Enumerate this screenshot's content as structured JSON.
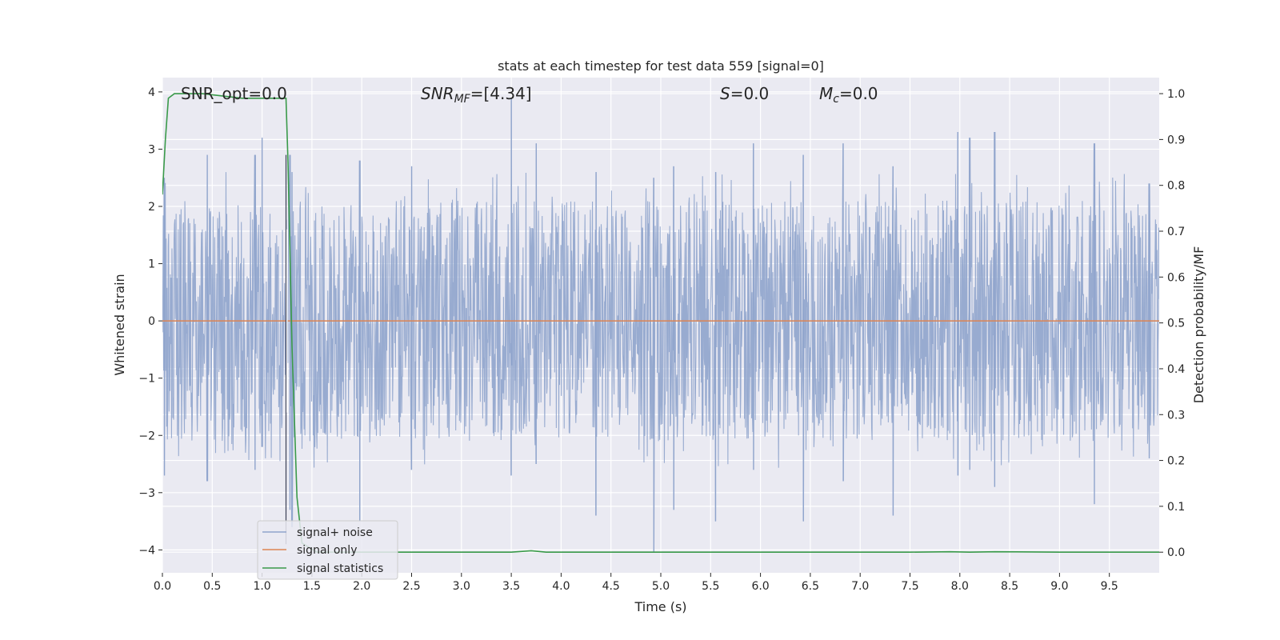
{
  "chart_data": {
    "type": "line",
    "title": "stats at each timestep for test data 559 [signal=0]",
    "xlabel": "Time (s)",
    "ylabel_left": "Whitened strain",
    "ylabel_right": "Detection probability/MF",
    "xlim": [
      0.0,
      10.0
    ],
    "ylim_left": [
      -4.4,
      4.25
    ],
    "ylim_right": [
      -0.045,
      1.035
    ],
    "x_ticks": [
      "0.0",
      "0.5",
      "1.0",
      "1.5",
      "2.0",
      "2.5",
      "3.0",
      "3.5",
      "4.0",
      "4.5",
      "5.0",
      "5.5",
      "6.0",
      "6.5",
      "7.0",
      "7.5",
      "8.0",
      "8.5",
      "9.0",
      "9.5"
    ],
    "x_tick_values": [
      0,
      0.5,
      1,
      1.5,
      2,
      2.5,
      3,
      3.5,
      4,
      4.5,
      5,
      5.5,
      6,
      6.5,
      7,
      7.5,
      8,
      8.5,
      9,
      9.5
    ],
    "y_left_ticks": [
      "−4",
      "−3",
      "−2",
      "−1",
      "0",
      "1",
      "2",
      "3",
      "4"
    ],
    "y_left_tick_values": [
      -4,
      -3,
      -2,
      -1,
      0,
      1,
      2,
      3,
      4
    ],
    "y_right_ticks": [
      "0.0",
      "0.1",
      "0.2",
      "0.3",
      "0.4",
      "0.5",
      "0.6",
      "0.7",
      "0.8",
      "0.9",
      "1.0"
    ],
    "y_right_tick_values": [
      0,
      0.1,
      0.2,
      0.3,
      0.4,
      0.5,
      0.6,
      0.7,
      0.8,
      0.9,
      1.0
    ],
    "grid": true,
    "legend_placement": "lower-left",
    "annotations": {
      "snr_opt": "SNR_opt=0.0",
      "snr_mf_main": "SNR",
      "snr_mf_sub": "MF",
      "snr_mf_value": "=[4.34]",
      "s_main": "S",
      "s_value": "=0.0",
      "mc_main": "M",
      "mc_sub": "c",
      "mc_value": "=0.0"
    },
    "series": [
      {
        "name": "signal+ noise",
        "axis": "left",
        "color": "#8fa4cc",
        "envelope_peaks": [
          {
            "x": 0.02,
            "hi": 2.5,
            "lo": -2.7
          },
          {
            "x": 0.45,
            "hi": 2.9,
            "lo": -2.8
          },
          {
            "x": 0.93,
            "hi": 2.9,
            "lo": -2.6
          },
          {
            "x": 1.0,
            "hi": 3.2,
            "lo": -2.2
          },
          {
            "x": 1.28,
            "hi": 2.9,
            "lo": -3.3
          },
          {
            "x": 1.3,
            "hi": 2.6,
            "lo": -3.6
          },
          {
            "x": 1.98,
            "hi": 2.8,
            "lo": -3.5
          },
          {
            "x": 2.5,
            "hi": 2.7,
            "lo": -2.6
          },
          {
            "x": 3.5,
            "hi": 3.9,
            "lo": -2.7
          },
          {
            "x": 3.75,
            "hi": 3.1,
            "lo": -2.5
          },
          {
            "x": 4.35,
            "hi": 2.6,
            "lo": -3.4
          },
          {
            "x": 4.93,
            "hi": 2.5,
            "lo": -4.05
          },
          {
            "x": 5.13,
            "hi": 2.7,
            "lo": -3.3
          },
          {
            "x": 5.55,
            "hi": 2.6,
            "lo": -3.5
          },
          {
            "x": 5.93,
            "hi": 3.1,
            "lo": -2.6
          },
          {
            "x": 6.43,
            "hi": 2.9,
            "lo": -3.5
          },
          {
            "x": 6.83,
            "hi": 3.1,
            "lo": -2.8
          },
          {
            "x": 7.33,
            "hi": 2.7,
            "lo": -3.4
          },
          {
            "x": 7.98,
            "hi": 3.3,
            "lo": -2.7
          },
          {
            "x": 8.1,
            "hi": 3.2,
            "lo": -2.6
          },
          {
            "x": 8.35,
            "hi": 3.3,
            "lo": -2.9
          },
          {
            "x": 9.35,
            "hi": 3.1,
            "lo": -3.2
          },
          {
            "x": 9.9,
            "hi": 2.4,
            "lo": -2.4
          }
        ]
      },
      {
        "name": "signal only",
        "axis": "left",
        "color": "#dd8452",
        "x": [
          0.0,
          10.0
        ],
        "y": [
          0.0,
          0.0
        ]
      },
      {
        "name": "signal statistics",
        "axis": "right",
        "color": "#3a9a4a",
        "x": [
          0.0,
          0.03,
          0.06,
          0.12,
          0.2,
          0.4,
          0.8,
          1.2,
          1.24,
          1.26,
          1.3,
          1.35,
          1.4,
          1.55,
          2.0,
          3.0,
          3.5,
          3.7,
          3.85,
          4.5,
          5.5,
          6.5,
          7.5,
          7.9,
          8.1,
          8.35,
          9.0,
          10.0
        ],
        "y": [
          0.78,
          0.9,
          0.99,
          1.0,
          1.0,
          1.0,
          0.99,
          0.99,
          0.99,
          0.85,
          0.45,
          0.12,
          0.02,
          0.0,
          0.0,
          0.0,
          0.0,
          0.003,
          0.0,
          0.0,
          0.0,
          0.0,
          0.0,
          0.001,
          0.0,
          0.001,
          0.0,
          0.0
        ]
      }
    ],
    "marker_line_x": 1.24,
    "highlight_line_x": 1.25
  }
}
